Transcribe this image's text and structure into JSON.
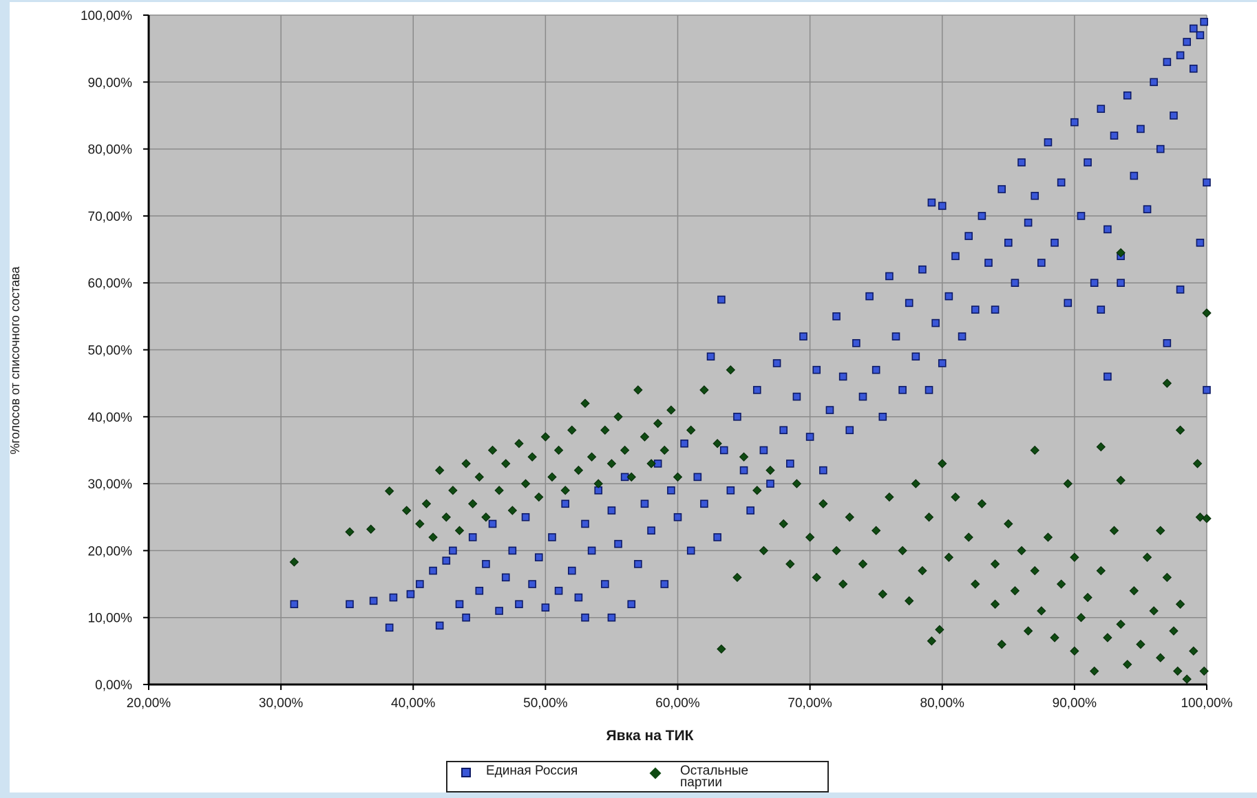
{
  "chart_data": {
    "type": "scatter",
    "title": "",
    "xlabel": "Явка на ТИК",
    "ylabel": "%голосов от списочного состава",
    "xlim": [
      20,
      100
    ],
    "ylim": [
      0,
      100
    ],
    "x_ticks": [
      "20,00%",
      "30,00%",
      "40,00%",
      "50,00%",
      "60,00%",
      "70,00%",
      "80,00%",
      "90,00%",
      "100,00%"
    ],
    "y_ticks": [
      "0,00%",
      "10,00%",
      "20,00%",
      "30,00%",
      "40,00%",
      "50,00%",
      "60,00%",
      "70,00%",
      "80,00%",
      "90,00%",
      "100,00%"
    ],
    "grid": true,
    "plot_background": "#c0c0c0",
    "legend_position": "bottom",
    "series": [
      {
        "name": "Единая Россия",
        "marker": "square",
        "color": "#3a57d8",
        "edge_color": "#0d1a66",
        "points": [
          [
            31,
            12
          ],
          [
            35.2,
            12
          ],
          [
            37,
            12.5
          ],
          [
            38.2,
            8.5
          ],
          [
            38.5,
            13
          ],
          [
            39.8,
            13.5
          ],
          [
            40.5,
            15
          ],
          [
            41.5,
            17
          ],
          [
            42,
            8.8
          ],
          [
            42.5,
            18.5
          ],
          [
            43,
            20
          ],
          [
            43.5,
            12
          ],
          [
            44,
            10
          ],
          [
            44.5,
            22
          ],
          [
            45,
            14
          ],
          [
            45.5,
            18
          ],
          [
            46,
            24
          ],
          [
            46.5,
            11
          ],
          [
            47,
            16
          ],
          [
            47.5,
            20
          ],
          [
            48,
            12
          ],
          [
            48.5,
            25
          ],
          [
            49,
            15
          ],
          [
            49.5,
            19
          ],
          [
            50,
            11.5
          ],
          [
            50.5,
            22
          ],
          [
            51,
            14
          ],
          [
            51.5,
            27
          ],
          [
            52,
            17
          ],
          [
            52.5,
            13
          ],
          [
            53,
            10
          ],
          [
            53,
            24
          ],
          [
            53.5,
            20
          ],
          [
            54,
            29
          ],
          [
            54.5,
            15
          ],
          [
            55,
            10
          ],
          [
            55,
            26
          ],
          [
            55.5,
            21
          ],
          [
            56,
            31
          ],
          [
            56.5,
            12
          ],
          [
            57,
            18
          ],
          [
            57.5,
            27
          ],
          [
            58,
            23
          ],
          [
            58.5,
            33
          ],
          [
            59,
            15
          ],
          [
            59.5,
            29
          ],
          [
            60,
            25
          ],
          [
            60.5,
            36
          ],
          [
            61,
            20
          ],
          [
            61.5,
            31
          ],
          [
            62,
            27
          ],
          [
            62.5,
            49
          ],
          [
            63,
            22
          ],
          [
            63.3,
            57.5
          ],
          [
            63.5,
            35
          ],
          [
            64,
            29
          ],
          [
            64.5,
            40
          ],
          [
            65,
            32
          ],
          [
            65.5,
            26
          ],
          [
            66,
            44
          ],
          [
            66.5,
            35
          ],
          [
            67,
            30
          ],
          [
            67.5,
            48
          ],
          [
            68,
            38
          ],
          [
            68.5,
            33
          ],
          [
            69,
            43
          ],
          [
            69.5,
            52
          ],
          [
            70,
            37
          ],
          [
            70.5,
            47
          ],
          [
            71,
            32
          ],
          [
            71.5,
            41
          ],
          [
            72,
            55
          ],
          [
            72.5,
            46
          ],
          [
            73,
            38
          ],
          [
            73.5,
            51
          ],
          [
            74,
            43
          ],
          [
            74.5,
            58
          ],
          [
            75,
            47
          ],
          [
            75.5,
            40
          ],
          [
            76,
            61
          ],
          [
            76.5,
            52
          ],
          [
            77,
            44
          ],
          [
            77.5,
            57
          ],
          [
            78,
            49
          ],
          [
            78.5,
            62
          ],
          [
            79,
            44
          ],
          [
            79.2,
            72
          ],
          [
            79.5,
            54
          ],
          [
            80,
            48
          ],
          [
            80,
            71.5
          ],
          [
            80.5,
            58
          ],
          [
            81,
            64
          ],
          [
            81.5,
            52
          ],
          [
            82,
            67
          ],
          [
            82.5,
            56
          ],
          [
            83,
            70
          ],
          [
            83.5,
            63
          ],
          [
            84,
            56
          ],
          [
            84.5,
            74
          ],
          [
            85,
            66
          ],
          [
            85.5,
            60
          ],
          [
            86,
            78
          ],
          [
            86.5,
            69
          ],
          [
            87,
            73
          ],
          [
            87.5,
            63
          ],
          [
            88,
            81
          ],
          [
            88.5,
            66
          ],
          [
            89,
            75
          ],
          [
            89.5,
            57
          ],
          [
            90,
            84
          ],
          [
            90.5,
            70
          ],
          [
            91,
            78
          ],
          [
            91.5,
            60
          ],
          [
            92,
            86
          ],
          [
            92.5,
            68
          ],
          [
            92.5,
            46
          ],
          [
            93,
            82
          ],
          [
            93.5,
            64
          ],
          [
            94,
            88
          ],
          [
            94.5,
            76
          ],
          [
            95,
            83
          ],
          [
            95.5,
            71
          ],
          [
            96,
            90
          ],
          [
            96.5,
            80
          ],
          [
            97,
            93
          ],
          [
            97.5,
            85
          ],
          [
            98,
            59
          ],
          [
            97,
            51
          ],
          [
            98.5,
            96
          ],
          [
            99,
            92
          ],
          [
            99.5,
            97
          ],
          [
            99.8,
            99
          ],
          [
            99.5,
            66
          ],
          [
            100,
            75
          ],
          [
            100,
            44
          ],
          [
            99,
            98
          ],
          [
            98,
            94
          ],
          [
            92,
            56
          ],
          [
            93.5,
            60
          ]
        ]
      },
      {
        "name": "Остальные партии",
        "marker": "diamond",
        "color": "#0f4a12",
        "edge_color": "#062a08",
        "points": [
          [
            31,
            18.3
          ],
          [
            35.2,
            22.8
          ],
          [
            36.8,
            23.2
          ],
          [
            38.2,
            28.9
          ],
          [
            39.5,
            26
          ],
          [
            40.5,
            24
          ],
          [
            41,
            27
          ],
          [
            41.5,
            22
          ],
          [
            42,
            32
          ],
          [
            42.5,
            25
          ],
          [
            43,
            29
          ],
          [
            43.5,
            23
          ],
          [
            44,
            33
          ],
          [
            44.5,
            27
          ],
          [
            45,
            31
          ],
          [
            45.5,
            25
          ],
          [
            46,
            35
          ],
          [
            46.5,
            29
          ],
          [
            47,
            33
          ],
          [
            47.5,
            26
          ],
          [
            48,
            36
          ],
          [
            48.5,
            30
          ],
          [
            49,
            34
          ],
          [
            49.5,
            28
          ],
          [
            50,
            37
          ],
          [
            50.5,
            31
          ],
          [
            51,
            35
          ],
          [
            51.5,
            29
          ],
          [
            52,
            38
          ],
          [
            52.5,
            32
          ],
          [
            53,
            42
          ],
          [
            53.5,
            34
          ],
          [
            54,
            30
          ],
          [
            54.5,
            38
          ],
          [
            55,
            33
          ],
          [
            55.5,
            40
          ],
          [
            56,
            35
          ],
          [
            56.5,
            31
          ],
          [
            57,
            44
          ],
          [
            57.5,
            37
          ],
          [
            58,
            33
          ],
          [
            58.5,
            39
          ],
          [
            59,
            35
          ],
          [
            59.5,
            41
          ],
          [
            60,
            31
          ],
          [
            61,
            38
          ],
          [
            62,
            44
          ],
          [
            63,
            36
          ],
          [
            64,
            47
          ],
          [
            63.3,
            5.3
          ],
          [
            64.5,
            16
          ],
          [
            65,
            34
          ],
          [
            66,
            29
          ],
          [
            66.5,
            20
          ],
          [
            67,
            32
          ],
          [
            68,
            24
          ],
          [
            68.5,
            18
          ],
          [
            69,
            30
          ],
          [
            70,
            22
          ],
          [
            70.5,
            16
          ],
          [
            71,
            27
          ],
          [
            72,
            20
          ],
          [
            72.5,
            15
          ],
          [
            73,
            25
          ],
          [
            74,
            18
          ],
          [
            75,
            23
          ],
          [
            75.5,
            13.5
          ],
          [
            76,
            28
          ],
          [
            77,
            20
          ],
          [
            77.5,
            12.5
          ],
          [
            78,
            30
          ],
          [
            78.5,
            17
          ],
          [
            79,
            25
          ],
          [
            79.2,
            6.5
          ],
          [
            79.8,
            8.2
          ],
          [
            80,
            33
          ],
          [
            80.5,
            19
          ],
          [
            81,
            28
          ],
          [
            82,
            22
          ],
          [
            82.5,
            15
          ],
          [
            83,
            27
          ],
          [
            84,
            12
          ],
          [
            84,
            18
          ],
          [
            84.5,
            6
          ],
          [
            85,
            24
          ],
          [
            85.5,
            14
          ],
          [
            86,
            20
          ],
          [
            86.5,
            8
          ],
          [
            87,
            17
          ],
          [
            87,
            35
          ],
          [
            87.5,
            11
          ],
          [
            88,
            22
          ],
          [
            88.5,
            7
          ],
          [
            89,
            15
          ],
          [
            89.5,
            30
          ],
          [
            90,
            5
          ],
          [
            90,
            19
          ],
          [
            90.5,
            10
          ],
          [
            91,
            13
          ],
          [
            91.5,
            2
          ],
          [
            92,
            17
          ],
          [
            92.5,
            7
          ],
          [
            93,
            23
          ],
          [
            93.5,
            9
          ],
          [
            93.5,
            30.5
          ],
          [
            94,
            3
          ],
          [
            94.5,
            14
          ],
          [
            95,
            6
          ],
          [
            95.5,
            19
          ],
          [
            96,
            11
          ],
          [
            96.5,
            4
          ],
          [
            97,
            16
          ],
          [
            97.5,
            8
          ],
          [
            97.8,
            2
          ],
          [
            98,
            38
          ],
          [
            98,
            12
          ],
          [
            98.5,
            0.8
          ],
          [
            99,
            5
          ],
          [
            99.3,
            33
          ],
          [
            99.5,
            25
          ],
          [
            99.8,
            2
          ],
          [
            100,
            55.5
          ],
          [
            100,
            24.8
          ],
          [
            97,
            45
          ],
          [
            92,
            35.5
          ],
          [
            93.5,
            64.5
          ],
          [
            96.5,
            23
          ]
        ]
      }
    ]
  }
}
